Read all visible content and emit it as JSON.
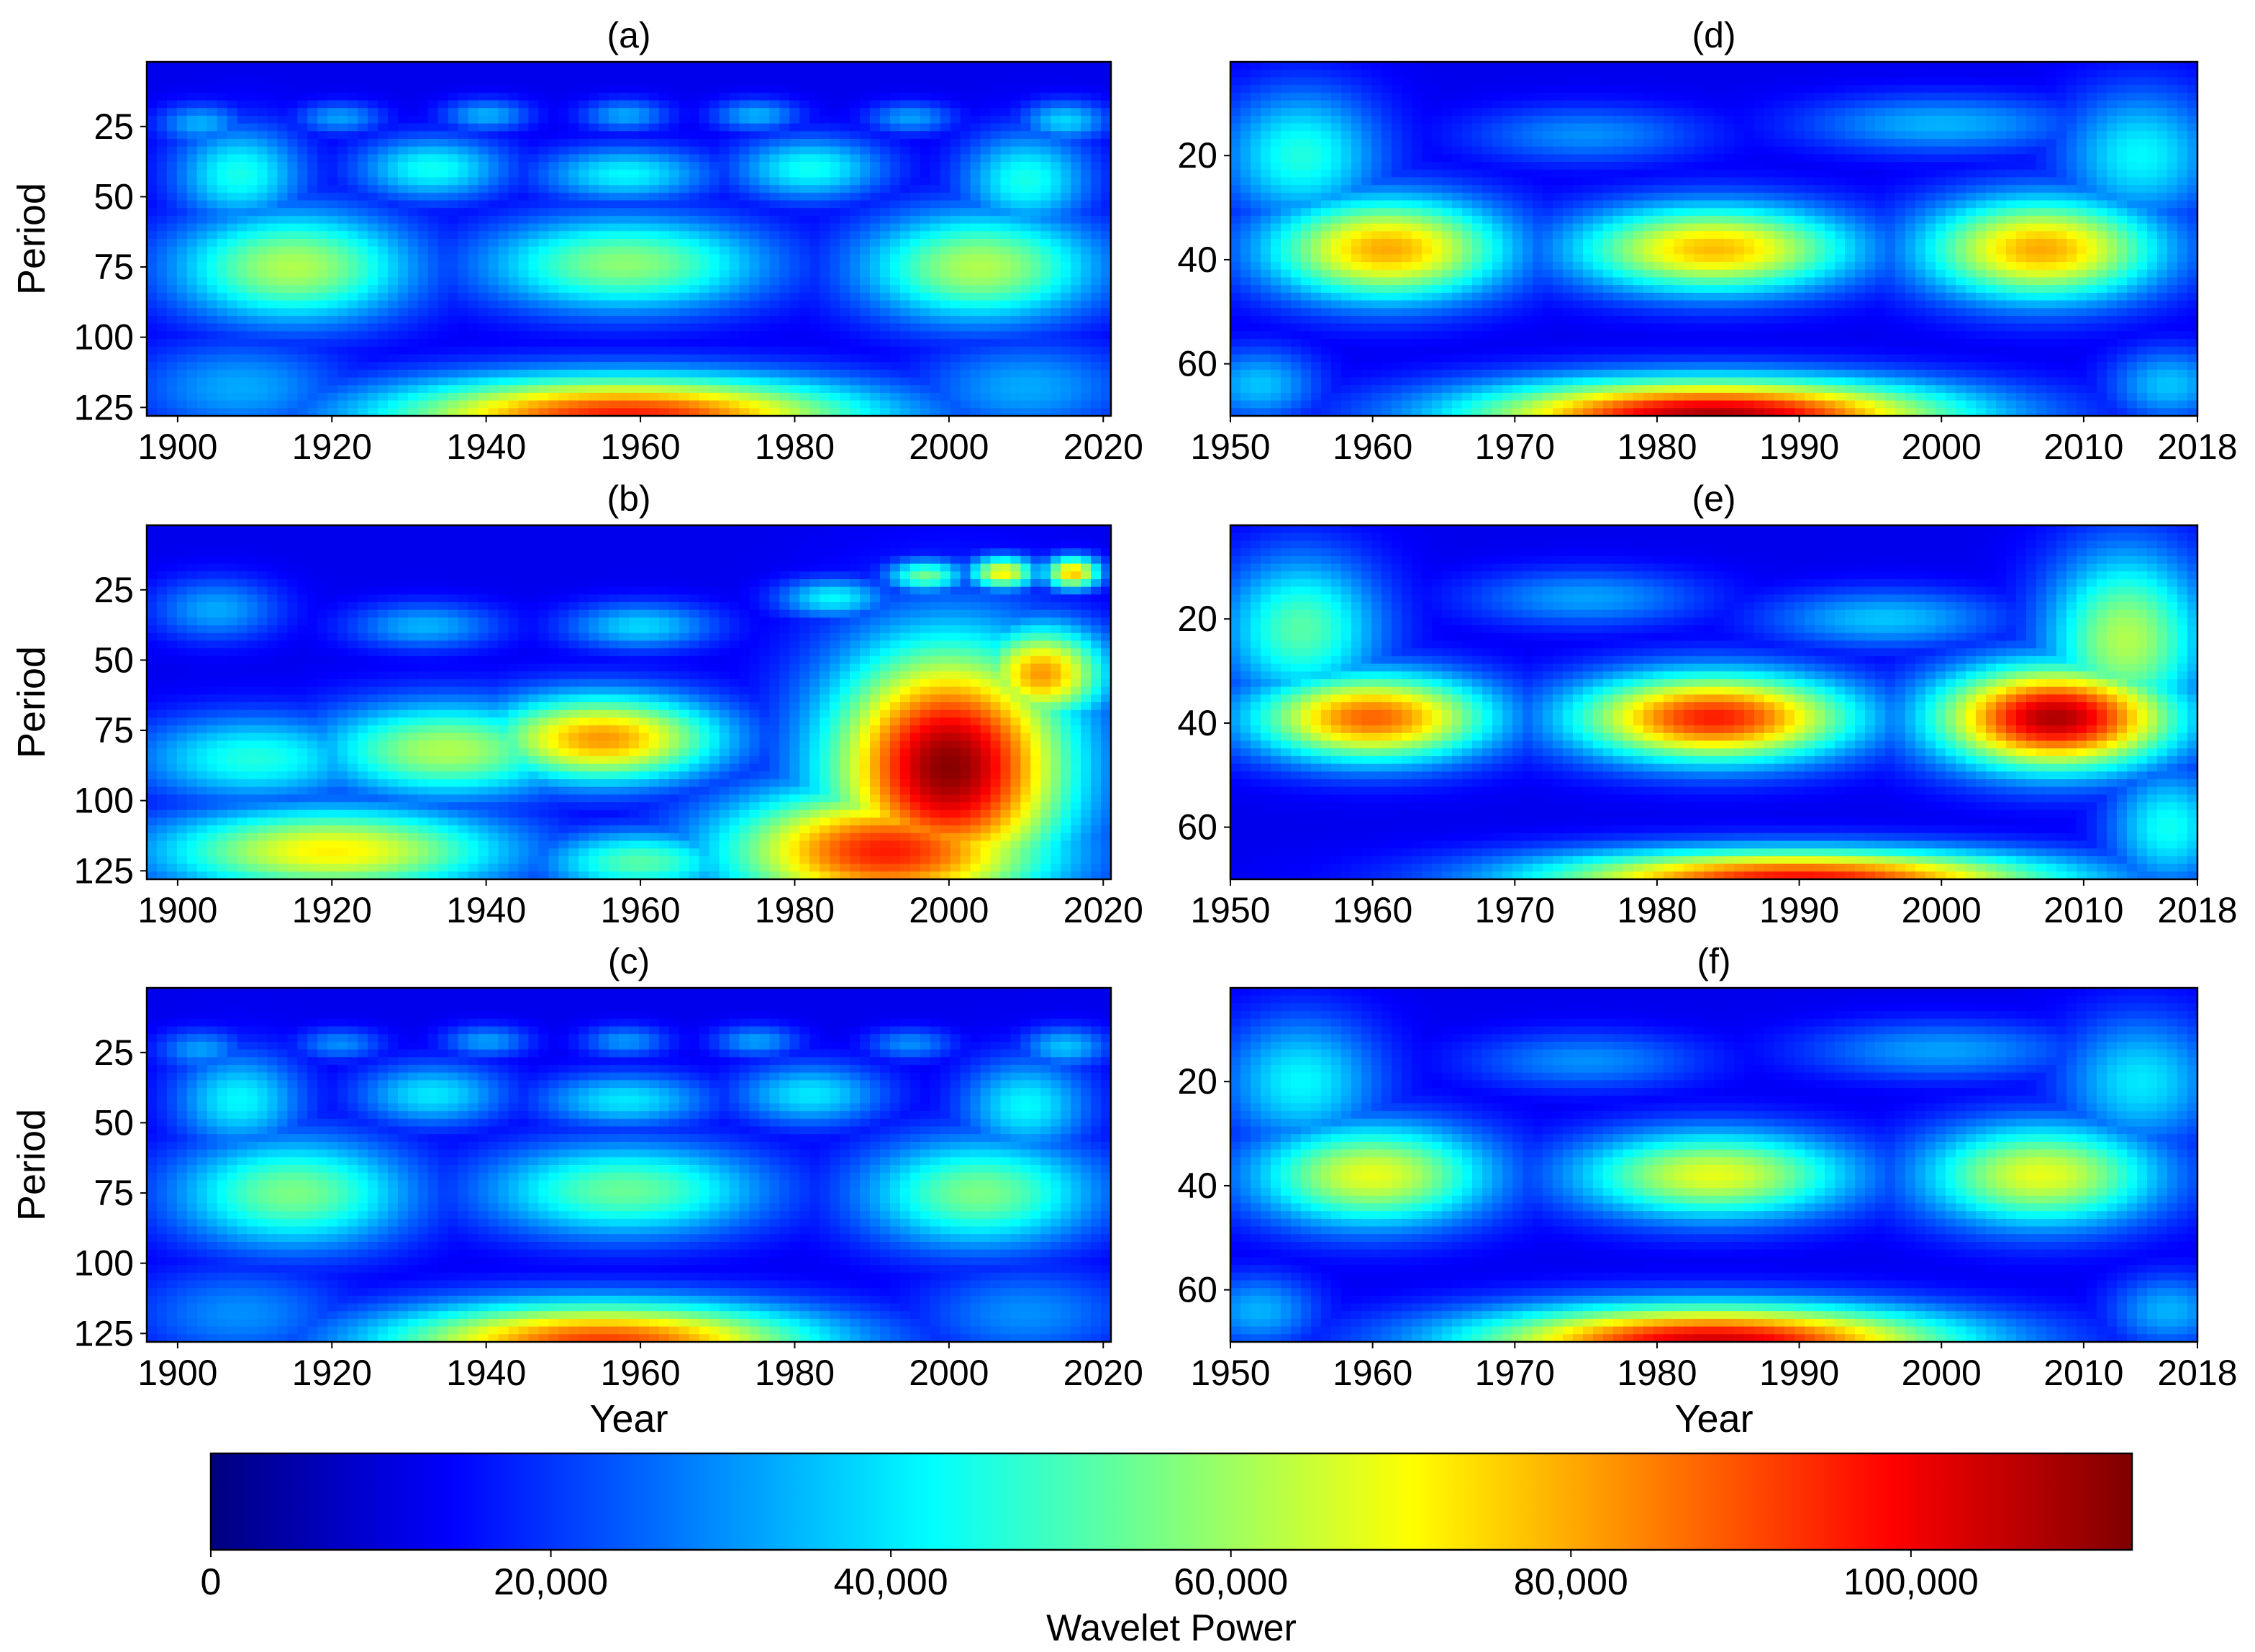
{
  "figure": {
    "colorbar": {
      "label": "Wavelet Power",
      "min": 0,
      "max": 113000,
      "ticks": [
        0,
        20000,
        40000,
        60000,
        80000,
        100000
      ],
      "tick_labels": [
        "0",
        "20,000",
        "40,000",
        "60,000",
        "80,000",
        "100,000"
      ],
      "colormap": "jet",
      "colors": [
        "#00007f",
        "#0000ff",
        "#007fff",
        "#00ffff",
        "#7fff7f",
        "#ffff00",
        "#ff7f00",
        "#ff0000",
        "#7f0000"
      ]
    }
  },
  "chart_data": [
    {
      "type": "heatmap",
      "title": "(a)",
      "xlabel": "",
      "ylabel": "Period",
      "xlim": [
        1896,
        2021
      ],
      "ylim": [
        2,
        128
      ],
      "y_inverted": true,
      "xticks": [
        1900,
        1920,
        1940,
        1960,
        1980,
        2000,
        2020
      ],
      "xtick_labels": [
        "1900",
        "1920",
        "1940",
        "1960",
        "1980",
        "2000",
        "2020"
      ],
      "yticks": [
        25,
        50,
        75,
        100,
        125
      ],
      "ytick_labels": [
        "25",
        "50",
        "75",
        "100",
        "125"
      ],
      "background": 12000,
      "blobs": [
        {
          "x": 1908,
          "y": 42,
          "sx": 6,
          "sy": 12,
          "v": 45000
        },
        {
          "x": 1915,
          "y": 75,
          "sx": 11,
          "sy": 14,
          "v": 62000
        },
        {
          "x": 1933,
          "y": 40,
          "sx": 7,
          "sy": 8,
          "v": 44000
        },
        {
          "x": 1958,
          "y": 42,
          "sx": 8,
          "sy": 7,
          "v": 42000
        },
        {
          "x": 1958,
          "y": 74,
          "sx": 13,
          "sy": 12,
          "v": 58000
        },
        {
          "x": 1982,
          "y": 40,
          "sx": 7,
          "sy": 8,
          "v": 44000
        },
        {
          "x": 2004,
          "y": 75,
          "sx": 11,
          "sy": 14,
          "v": 62000
        },
        {
          "x": 2010,
          "y": 44,
          "sx": 6,
          "sy": 12,
          "v": 45000
        },
        {
          "x": 1958,
          "y": 128,
          "sx": 22,
          "sy": 10,
          "v": 96000
        },
        {
          "x": 1903,
          "y": 24,
          "sx": 4,
          "sy": 5,
          "v": 34000
        },
        {
          "x": 1921,
          "y": 22,
          "sx": 4,
          "sy": 4,
          "v": 32000
        },
        {
          "x": 1940,
          "y": 21,
          "sx": 4,
          "sy": 4,
          "v": 34000
        },
        {
          "x": 1958,
          "y": 21,
          "sx": 4,
          "sy": 4,
          "v": 33000
        },
        {
          "x": 1975,
          "y": 21,
          "sx": 4,
          "sy": 4,
          "v": 34000
        },
        {
          "x": 1995,
          "y": 22,
          "sx": 4,
          "sy": 4,
          "v": 32000
        },
        {
          "x": 2015,
          "y": 23,
          "sx": 4,
          "sy": 5,
          "v": 38000
        },
        {
          "x": 1908,
          "y": 118,
          "sx": 10,
          "sy": 12,
          "v": 33000
        },
        {
          "x": 2010,
          "y": 118,
          "sx": 10,
          "sy": 12,
          "v": 33000
        }
      ]
    },
    {
      "type": "heatmap",
      "title": "(b)",
      "xlabel": "",
      "ylabel": "Period",
      "xlim": [
        1896,
        2021
      ],
      "ylim": [
        2,
        128
      ],
      "y_inverted": true,
      "xticks": [
        1900,
        1920,
        1940,
        1960,
        1980,
        2000,
        2020
      ],
      "xtick_labels": [
        "1900",
        "1920",
        "1940",
        "1960",
        "1980",
        "2000",
        "2020"
      ],
      "yticks": [
        25,
        50,
        75,
        100,
        125
      ],
      "ytick_labels": [
        "25",
        "50",
        "75",
        "100",
        "125"
      ],
      "background": 12000,
      "blobs": [
        {
          "x": 1905,
          "y": 32,
          "sx": 6,
          "sy": 8,
          "v": 33000
        },
        {
          "x": 1932,
          "y": 38,
          "sx": 7,
          "sy": 6,
          "v": 34000
        },
        {
          "x": 1960,
          "y": 38,
          "sx": 7,
          "sy": 6,
          "v": 38000
        },
        {
          "x": 1985,
          "y": 28,
          "sx": 5,
          "sy": 5,
          "v": 42000
        },
        {
          "x": 1997,
          "y": 20,
          "sx": 3.5,
          "sy": 4,
          "v": 55000
        },
        {
          "x": 2007,
          "y": 19,
          "sx": 3,
          "sy": 4,
          "v": 72000
        },
        {
          "x": 2016,
          "y": 19,
          "sx": 2.5,
          "sy": 4,
          "v": 78000
        },
        {
          "x": 1910,
          "y": 85,
          "sx": 11,
          "sy": 11,
          "v": 46000
        },
        {
          "x": 1935,
          "y": 82,
          "sx": 12,
          "sy": 12,
          "v": 62000
        },
        {
          "x": 1955,
          "y": 78,
          "sx": 11,
          "sy": 11,
          "v": 82000
        },
        {
          "x": 1920,
          "y": 118,
          "sx": 16,
          "sy": 11,
          "v": 72000
        },
        {
          "x": 1960,
          "y": 122,
          "sx": 9,
          "sy": 8,
          "v": 52000
        },
        {
          "x": 2000,
          "y": 88,
          "sx": 11,
          "sy": 30,
          "v": 112000
        },
        {
          "x": 1992,
          "y": 118,
          "sx": 15,
          "sy": 16,
          "v": 96000
        },
        {
          "x": 2012,
          "y": 55,
          "sx": 6,
          "sy": 12,
          "v": 82000
        }
      ]
    },
    {
      "type": "heatmap",
      "title": "(c)",
      "xlabel": "Year",
      "ylabel": "Period",
      "xlim": [
        1896,
        2021
      ],
      "ylim": [
        2,
        128
      ],
      "y_inverted": true,
      "xticks": [
        1900,
        1920,
        1940,
        1960,
        1980,
        2000,
        2020
      ],
      "xtick_labels": [
        "1900",
        "1920",
        "1940",
        "1960",
        "1980",
        "2000",
        "2020"
      ],
      "yticks": [
        25,
        50,
        75,
        100,
        125
      ],
      "ytick_labels": [
        "25",
        "50",
        "75",
        "100",
        "125"
      ],
      "background": 12000,
      "blobs": [
        {
          "x": 1908,
          "y": 42,
          "sx": 6,
          "sy": 12,
          "v": 42000
        },
        {
          "x": 1915,
          "y": 75,
          "sx": 11,
          "sy": 14,
          "v": 56000
        },
        {
          "x": 1933,
          "y": 40,
          "sx": 7,
          "sy": 8,
          "v": 40000
        },
        {
          "x": 1958,
          "y": 42,
          "sx": 8,
          "sy": 7,
          "v": 40000
        },
        {
          "x": 1958,
          "y": 74,
          "sx": 13,
          "sy": 12,
          "v": 54000
        },
        {
          "x": 1982,
          "y": 40,
          "sx": 7,
          "sy": 8,
          "v": 40000
        },
        {
          "x": 2004,
          "y": 75,
          "sx": 11,
          "sy": 14,
          "v": 56000
        },
        {
          "x": 2010,
          "y": 44,
          "sx": 6,
          "sy": 12,
          "v": 42000
        },
        {
          "x": 1955,
          "y": 128,
          "sx": 20,
          "sy": 10,
          "v": 92000
        },
        {
          "x": 1903,
          "y": 24,
          "sx": 4,
          "sy": 5,
          "v": 32000
        },
        {
          "x": 1921,
          "y": 22,
          "sx": 4,
          "sy": 4,
          "v": 30000
        },
        {
          "x": 1940,
          "y": 21,
          "sx": 4,
          "sy": 4,
          "v": 32000
        },
        {
          "x": 1958,
          "y": 21,
          "sx": 4,
          "sy": 4,
          "v": 31000
        },
        {
          "x": 1975,
          "y": 21,
          "sx": 4,
          "sy": 4,
          "v": 32000
        },
        {
          "x": 1995,
          "y": 22,
          "sx": 4,
          "sy": 4,
          "v": 30000
        },
        {
          "x": 2015,
          "y": 23,
          "sx": 4,
          "sy": 5,
          "v": 36000
        },
        {
          "x": 1908,
          "y": 118,
          "sx": 10,
          "sy": 12,
          "v": 30000
        },
        {
          "x": 2010,
          "y": 118,
          "sx": 10,
          "sy": 12,
          "v": 30000
        }
      ]
    },
    {
      "type": "heatmap",
      "title": "(d)",
      "xlabel": "",
      "ylabel": "",
      "xlim": [
        1950,
        2018
      ],
      "ylim": [
        2,
        70
      ],
      "y_inverted": true,
      "xticks": [
        1950,
        1960,
        1970,
        1980,
        1990,
        2000,
        2010,
        2018
      ],
      "xtick_labels": [
        "1950",
        "1960",
        "1970",
        "1980",
        "1990",
        "2000",
        "2010",
        "2018"
      ],
      "yticks": [
        20,
        40,
        60
      ],
      "ytick_labels": [
        "20",
        "40",
        "60"
      ],
      "background": 12000,
      "blobs": [
        {
          "x": 1955,
          "y": 20,
          "sx": 4,
          "sy": 9,
          "v": 46000
        },
        {
          "x": 1961,
          "y": 38,
          "sx": 6,
          "sy": 7,
          "v": 80000
        },
        {
          "x": 1984,
          "y": 38,
          "sx": 7,
          "sy": 6,
          "v": 78000
        },
        {
          "x": 2007,
          "y": 38,
          "sx": 6,
          "sy": 7,
          "v": 80000
        },
        {
          "x": 2014,
          "y": 20,
          "sx": 4,
          "sy": 9,
          "v": 42000
        },
        {
          "x": 1984,
          "y": 70,
          "sx": 12,
          "sy": 5,
          "v": 108000
        },
        {
          "x": 1975,
          "y": 16,
          "sx": 6,
          "sy": 4,
          "v": 30000
        },
        {
          "x": 2000,
          "y": 14,
          "sx": 7,
          "sy": 4,
          "v": 34000
        },
        {
          "x": 1952,
          "y": 64,
          "sx": 3,
          "sy": 5,
          "v": 36000
        },
        {
          "x": 2016,
          "y": 64,
          "sx": 3,
          "sy": 5,
          "v": 36000
        }
      ]
    },
    {
      "type": "heatmap",
      "title": "(e)",
      "xlabel": "",
      "ylabel": "",
      "xlim": [
        1950,
        2018
      ],
      "ylim": [
        2,
        70
      ],
      "y_inverted": true,
      "xticks": [
        1950,
        1960,
        1970,
        1980,
        1990,
        2000,
        2010,
        2018
      ],
      "xtick_labels": [
        "1950",
        "1960",
        "1970",
        "1980",
        "1990",
        "2000",
        "2010",
        "2018"
      ],
      "yticks": [
        20,
        40,
        60
      ],
      "ytick_labels": [
        "20",
        "40",
        "60"
      ],
      "background": 12000,
      "blobs": [
        {
          "x": 1955,
          "y": 22,
          "sx": 4,
          "sy": 10,
          "v": 52000
        },
        {
          "x": 1960,
          "y": 39,
          "sx": 6,
          "sy": 6,
          "v": 88000
        },
        {
          "x": 1984,
          "y": 39,
          "sx": 7,
          "sy": 6,
          "v": 96000
        },
        {
          "x": 2008,
          "y": 39,
          "sx": 6,
          "sy": 7,
          "v": 108000
        },
        {
          "x": 2013,
          "y": 24,
          "sx": 4,
          "sy": 12,
          "v": 62000
        },
        {
          "x": 1990,
          "y": 70,
          "sx": 13,
          "sy": 4,
          "v": 98000
        },
        {
          "x": 1975,
          "y": 16,
          "sx": 6,
          "sy": 4,
          "v": 32000
        },
        {
          "x": 1996,
          "y": 20,
          "sx": 6,
          "sy": 4,
          "v": 36000
        },
        {
          "x": 2016,
          "y": 60,
          "sx": 3,
          "sy": 8,
          "v": 44000
        }
      ]
    },
    {
      "type": "heatmap",
      "title": "(f)",
      "xlabel": "Year",
      "ylabel": "",
      "xlim": [
        1950,
        2018
      ],
      "ylim": [
        2,
        70
      ],
      "y_inverted": true,
      "xticks": [
        1950,
        1960,
        1970,
        1980,
        1990,
        2000,
        2010,
        2018
      ],
      "xtick_labels": [
        "1950",
        "1960",
        "1970",
        "1980",
        "1990",
        "2000",
        "2010",
        "2018"
      ],
      "yticks": [
        20,
        40,
        60
      ],
      "ytick_labels": [
        "20",
        "40",
        "60"
      ],
      "background": 12000,
      "blobs": [
        {
          "x": 1955,
          "y": 20,
          "sx": 4,
          "sy": 9,
          "v": 42000
        },
        {
          "x": 1960,
          "y": 38,
          "sx": 6,
          "sy": 7,
          "v": 68000
        },
        {
          "x": 1984,
          "y": 38,
          "sx": 7,
          "sy": 6,
          "v": 68000
        },
        {
          "x": 2007,
          "y": 38,
          "sx": 6,
          "sy": 7,
          "v": 68000
        },
        {
          "x": 2014,
          "y": 20,
          "sx": 4,
          "sy": 9,
          "v": 40000
        },
        {
          "x": 1984,
          "y": 70,
          "sx": 12,
          "sy": 5,
          "v": 104000
        },
        {
          "x": 1975,
          "y": 16,
          "sx": 6,
          "sy": 4,
          "v": 30000
        },
        {
          "x": 2000,
          "y": 14,
          "sx": 7,
          "sy": 4,
          "v": 32000
        },
        {
          "x": 1952,
          "y": 64,
          "sx": 3,
          "sy": 5,
          "v": 34000
        },
        {
          "x": 2016,
          "y": 64,
          "sx": 3,
          "sy": 5,
          "v": 34000
        }
      ]
    }
  ]
}
